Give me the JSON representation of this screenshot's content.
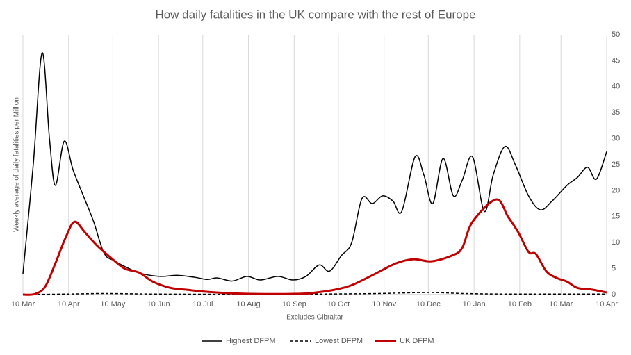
{
  "chart_data": {
    "type": "line",
    "title": "How daily fatalities in the UK compare with the rest of Europe",
    "y_axis_label": "Weekly average of daily fatalities per Million",
    "x_axis_label": "Excludes Gibraltar",
    "xlim": [
      0,
      396
    ],
    "xticks": [
      {
        "value": 0,
        "label": "10 Mar"
      },
      {
        "value": 31,
        "label": "10 Apr"
      },
      {
        "value": 61,
        "label": "10 May"
      },
      {
        "value": 92,
        "label": "10 Jun"
      },
      {
        "value": 122,
        "label": "10 Jul"
      },
      {
        "value": 153,
        "label": "10 Aug"
      },
      {
        "value": 184,
        "label": "10 Sep"
      },
      {
        "value": 214,
        "label": "10 Oct"
      },
      {
        "value": 245,
        "label": "10 Nov"
      },
      {
        "value": 275,
        "label": "10 Dec"
      },
      {
        "value": 306,
        "label": "10 Jan"
      },
      {
        "value": 337,
        "label": "10 Feb"
      },
      {
        "value": 365,
        "label": "10 Mar"
      },
      {
        "value": 396,
        "label": "10 Apr"
      }
    ],
    "ylim": [
      0,
      50
    ],
    "yticks": [
      0,
      5,
      10,
      15,
      20,
      25,
      30,
      35,
      40,
      45,
      50
    ],
    "y_axis_side": "right",
    "grid": "vertical",
    "legend": "bottom",
    "series": [
      {
        "name": "Highest DFPM",
        "color": "#000000",
        "dash": "solid",
        "width": 1.5,
        "x": [
          0,
          7,
          13,
          18,
          22,
          28,
          34,
          41,
          48,
          55,
          62,
          72,
          81,
          93,
          105,
          117,
          125,
          132,
          142,
          152,
          161,
          173,
          183,
          192,
          201,
          208,
          216,
          223,
          230,
          237,
          244,
          251,
          257,
          266,
          272,
          278,
          285,
          292,
          298,
          305,
          313,
          319,
          327,
          334,
          343,
          351,
          359,
          369,
          376,
          383,
          389,
          396
        ],
        "values": [
          4,
          25,
          46.5,
          30,
          21,
          29.5,
          24,
          19,
          14,
          8,
          6.5,
          5,
          4,
          3.5,
          3.7,
          3.3,
          2.9,
          3.2,
          2.6,
          3.5,
          2.8,
          3.5,
          2.8,
          3.5,
          5.7,
          4.5,
          7.5,
          10,
          18.5,
          17.5,
          19,
          18,
          16,
          26.5,
          23,
          17.5,
          26.2,
          19,
          22,
          26.5,
          16,
          23,
          28.5,
          25,
          19,
          16.3,
          18,
          21,
          22.5,
          24.5,
          22.2,
          27.5
        ]
      },
      {
        "name": "Lowest DFPM",
        "color": "#000000",
        "dash": "dashed",
        "width": 1.5,
        "x": [
          0,
          30,
          55,
          90,
          150,
          200,
          240,
          275,
          300,
          330,
          396
        ],
        "values": [
          0,
          0.1,
          0.2,
          0.1,
          0.05,
          0.1,
          0.2,
          0.4,
          0.2,
          0.1,
          0.1
        ]
      },
      {
        "name": "UK DFPM",
        "color": "#c00000",
        "dash": "solid",
        "width": 3,
        "x": [
          0,
          8,
          15,
          22,
          29,
          35,
          42,
          50,
          60,
          69,
          79,
          88,
          100,
          112,
          126,
          145,
          173,
          192,
          199,
          211,
          223,
          239,
          253,
          265,
          277,
          291,
          298,
          305,
          321,
          329,
          336,
          343,
          348,
          355,
          362,
          369,
          376,
          385,
          396
        ],
        "values": [
          0,
          0.1,
          1.5,
          6,
          11,
          14,
          12,
          9.5,
          7,
          5,
          4.2,
          2.5,
          1.3,
          0.9,
          0.5,
          0.2,
          0.1,
          0.2,
          0.4,
          0.9,
          1.8,
          4,
          6,
          6.8,
          6.4,
          7.5,
          9,
          14,
          18.3,
          15,
          12,
          8.2,
          7.8,
          4.5,
          3.2,
          2.5,
          1.3,
          1.0,
          0.4
        ]
      }
    ]
  }
}
